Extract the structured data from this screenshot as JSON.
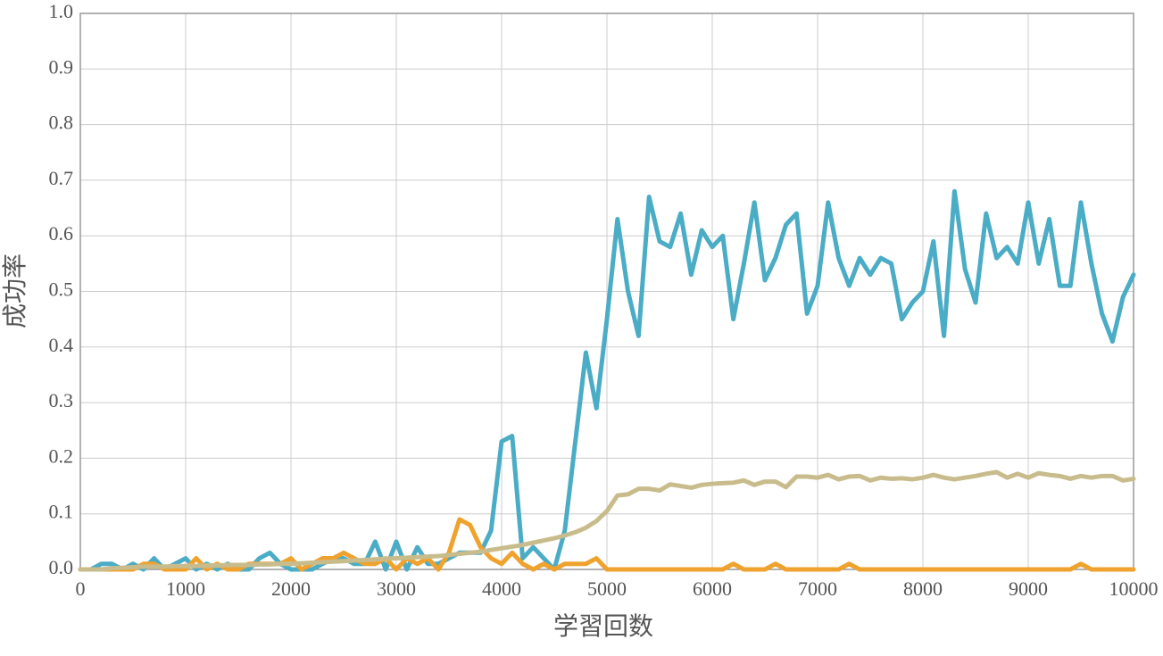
{
  "chart_data": {
    "type": "line",
    "xlabel": "学習回数",
    "ylabel": "成功率",
    "x": [
      0,
      100,
      200,
      300,
      400,
      500,
      600,
      700,
      800,
      900,
      1000,
      1100,
      1200,
      1300,
      1400,
      1500,
      1600,
      1700,
      1800,
      1900,
      2000,
      2100,
      2200,
      2300,
      2400,
      2500,
      2600,
      2700,
      2800,
      2900,
      3000,
      3100,
      3200,
      3300,
      3400,
      3500,
      3600,
      3700,
      3800,
      3900,
      4000,
      4100,
      4200,
      4300,
      4400,
      4500,
      4600,
      4700,
      4800,
      4900,
      5000,
      5100,
      5200,
      5300,
      5400,
      5500,
      5600,
      5700,
      5800,
      5900,
      6000,
      6100,
      6200,
      6300,
      6400,
      6500,
      6600,
      6700,
      6800,
      6900,
      7000,
      7100,
      7200,
      7300,
      7400,
      7500,
      7600,
      7700,
      7800,
      7900,
      8000,
      8100,
      8200,
      8300,
      8400,
      8500,
      8600,
      8700,
      8800,
      8900,
      9000,
      9100,
      9200,
      9300,
      9400,
      9500,
      9600,
      9700,
      9800,
      9900,
      10000
    ],
    "series": [
      {
        "color": "#4bacc6",
        "values": [
          0,
          0,
          0.01,
          0.01,
          0,
          0.01,
          0,
          0.02,
          0,
          0.01,
          0.02,
          0,
          0.01,
          0,
          0.01,
          0,
          0,
          0.02,
          0.03,
          0.01,
          0,
          0,
          0,
          0.01,
          0.02,
          0.02,
          0.01,
          0.01,
          0.05,
          0,
          0.05,
          0,
          0.04,
          0.01,
          0.01,
          0.02,
          0.03,
          0.03,
          0.03,
          0.07,
          0.23,
          0.24,
          0.02,
          0.04,
          0.02,
          0,
          0.07,
          0.23,
          0.39,
          0.29,
          0.45,
          0.63,
          0.5,
          0.42,
          0.67,
          0.59,
          0.58,
          0.64,
          0.53,
          0.61,
          0.58,
          0.6,
          0.45,
          0.55,
          0.66,
          0.52,
          0.56,
          0.62,
          0.64,
          0.46,
          0.51,
          0.66,
          0.56,
          0.51,
          0.56,
          0.53,
          0.56,
          0.55,
          0.45,
          0.48,
          0.5,
          0.59,
          0.42,
          0.68,
          0.54,
          0.48,
          0.64,
          0.56,
          0.58,
          0.55,
          0.66,
          0.55,
          0.63,
          0.51,
          0.51,
          0.66,
          0.55,
          0.46,
          0.41,
          0.49,
          0.53
        ]
      },
      {
        "color": "#f0a22e",
        "values": [
          0,
          0,
          0,
          0,
          0,
          0,
          0.01,
          0.01,
          0,
          0,
          0,
          0.02,
          0,
          0.01,
          0,
          0,
          0.01,
          0.01,
          0.01,
          0.01,
          0.02,
          0,
          0.01,
          0.02,
          0.02,
          0.03,
          0.02,
          0.01,
          0.01,
          0.02,
          0,
          0.02,
          0.01,
          0.02,
          0,
          0.03,
          0.09,
          0.08,
          0.04,
          0.02,
          0.01,
          0.03,
          0.01,
          0,
          0.01,
          0,
          0.01,
          0.01,
          0.01,
          0.02,
          0,
          0,
          0,
          0,
          0,
          0,
          0,
          0,
          0,
          0,
          0,
          0,
          0.01,
          0,
          0,
          0,
          0.01,
          0,
          0,
          0,
          0,
          0,
          0,
          0.01,
          0,
          0,
          0,
          0,
          0,
          0,
          0,
          0,
          0,
          0,
          0,
          0,
          0,
          0,
          0,
          0,
          0,
          0,
          0,
          0,
          0,
          0.01,
          0,
          0,
          0,
          0,
          0
        ]
      },
      {
        "color": "#c9bc8c",
        "values": [
          0,
          0,
          0,
          0.002,
          0.003,
          0.004,
          0.005,
          0.005,
          0.005,
          0.006,
          0.006,
          0.006,
          0.007,
          0.007,
          0.008,
          0.008,
          0.008,
          0.009,
          0.009,
          0.01,
          0.01,
          0.011,
          0.012,
          0.013,
          0.014,
          0.015,
          0.016,
          0.017,
          0.018,
          0.019,
          0.02,
          0.021,
          0.022,
          0.023,
          0.024,
          0.026,
          0.028,
          0.03,
          0.032,
          0.035,
          0.038,
          0.041,
          0.044,
          0.048,
          0.052,
          0.056,
          0.061,
          0.067,
          0.075,
          0.087,
          0.105,
          0.133,
          0.135,
          0.145,
          0.145,
          0.142,
          0.153,
          0.15,
          0.147,
          0.152,
          0.154,
          0.155,
          0.156,
          0.16,
          0.152,
          0.158,
          0.158,
          0.148,
          0.167,
          0.167,
          0.165,
          0.17,
          0.162,
          0.167,
          0.168,
          0.16,
          0.165,
          0.163,
          0.164,
          0.162,
          0.165,
          0.17,
          0.165,
          0.162,
          0.165,
          0.168,
          0.172,
          0.175,
          0.165,
          0.172,
          0.165,
          0.173,
          0.17,
          0.168,
          0.163,
          0.168,
          0.165,
          0.168,
          0.168,
          0.16,
          0.163
        ]
      }
    ],
    "xlim": [
      0,
      10000
    ],
    "xticks": [
      0,
      1000,
      2000,
      3000,
      4000,
      5000,
      6000,
      7000,
      8000,
      9000,
      10000
    ],
    "ylim": [
      0,
      1
    ],
    "yticks": [
      {
        "value": 0,
        "label": "0.0"
      },
      0.1,
      0.2,
      0.3,
      0.4,
      0.5,
      0.6,
      0.7,
      0.8,
      0.9,
      {
        "value": 1,
        "label": "1.0"
      }
    ],
    "grid": true
  }
}
